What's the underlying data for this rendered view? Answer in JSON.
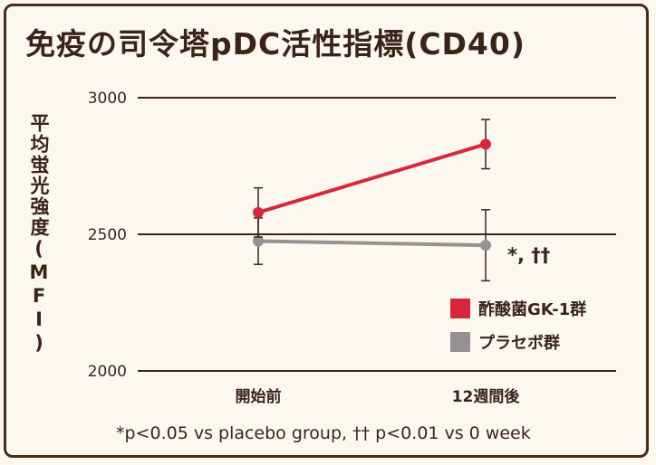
{
  "title": "免疫の司令塔pDC活性指標(CD40)",
  "footnote": "*p<0.05 vs placebo group, †† p<0.01 vs 0 week",
  "chart_data": {
    "type": "line",
    "ylabel": "平均蛍光強度(MFI)",
    "ylim": [
      2000,
      3000
    ],
    "yticks": [
      2000,
      2500,
      3000
    ],
    "categories": [
      "開始前",
      "12週間後"
    ],
    "series": [
      {
        "name": "酢酸菌GK-1群",
        "values": [
          2580,
          2830
        ],
        "errors": [
          90,
          90
        ],
        "color": "#d9273a"
      },
      {
        "name": "プラセボ群",
        "values": [
          2475,
          2460
        ],
        "errors": [
          85,
          130
        ],
        "color": "#939393"
      }
    ],
    "annotations": [
      {
        "category": "12週間後",
        "text": "*, ††"
      }
    ],
    "legend_position": "right",
    "grid": true
  }
}
